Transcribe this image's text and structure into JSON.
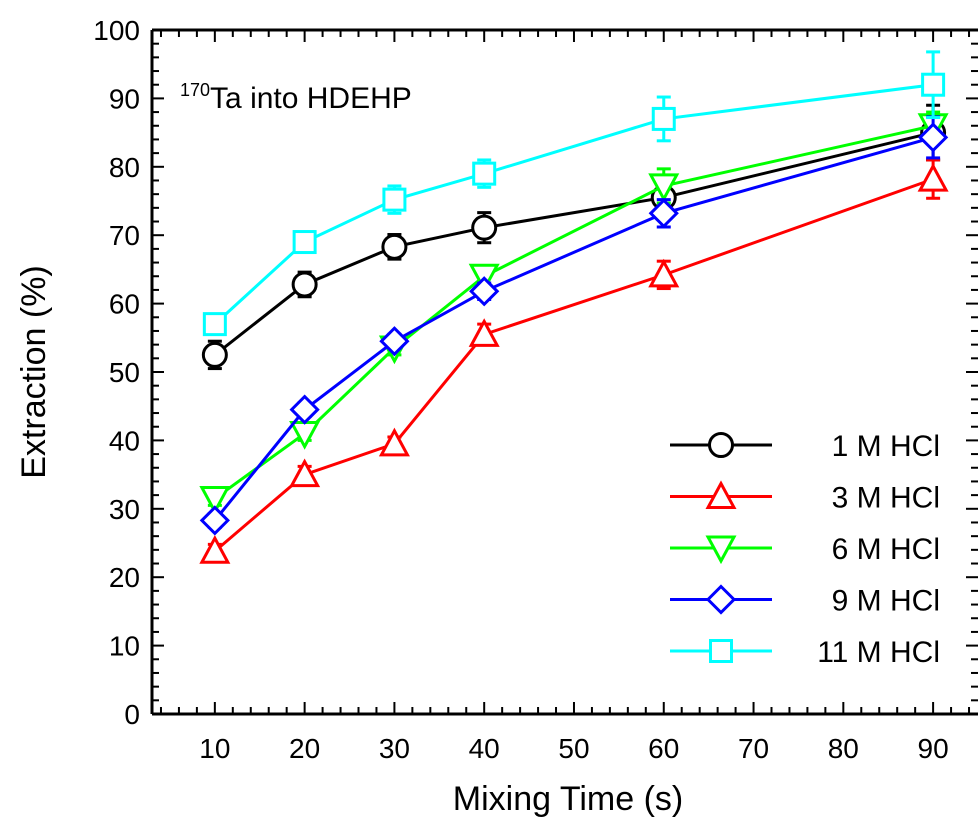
{
  "chart_data": {
    "type": "line",
    "title": "",
    "annotation": {
      "superscript": "170",
      "text": "Ta into HDEHP"
    },
    "xlabel": "Mixing Time (s)",
    "ylabel": "Extraction (%)",
    "xlim": [
      3,
      95
    ],
    "ylim": [
      0,
      100
    ],
    "xticks": [
      10,
      20,
      30,
      40,
      50,
      60,
      70,
      80,
      90
    ],
    "yticks": [
      0,
      10,
      20,
      30,
      40,
      50,
      60,
      70,
      80,
      90,
      100
    ],
    "grid": false,
    "legend_position": "bottom-right",
    "x": [
      10,
      20,
      30,
      40,
      60,
      90
    ],
    "series": [
      {
        "name": "1 M HCl",
        "color": "#000000",
        "marker": "circle",
        "values": [
          52.5,
          62.8,
          68.3,
          71.1,
          75.5,
          85.0
        ],
        "errors": [
          2.0,
          1.8,
          1.8,
          2.2,
          1.5,
          4.0
        ]
      },
      {
        "name": "3 M HCl",
        "color": "#ff0000",
        "marker": "triangle-up",
        "values": [
          23.8,
          35.0,
          39.5,
          55.5,
          64.2,
          78.2
        ],
        "errors": [
          1.0,
          1.2,
          1.0,
          1.5,
          2.0,
          2.8
        ]
      },
      {
        "name": "6 M HCl",
        "color": "#00ff00",
        "marker": "triangle-down",
        "values": [
          31.5,
          41.0,
          53.5,
          64.0,
          77.2,
          86.0
        ],
        "errors": [
          1.0,
          1.0,
          1.0,
          1.5,
          2.5,
          2.0
        ]
      },
      {
        "name": "9 M HCl",
        "color": "#0000ff",
        "marker": "diamond",
        "values": [
          28.3,
          44.5,
          54.5,
          61.8,
          73.2,
          84.3
        ],
        "errors": [
          1.0,
          1.0,
          1.0,
          1.2,
          2.0,
          3.0
        ]
      },
      {
        "name": "11 M HCl",
        "color": "#00ffff",
        "marker": "square",
        "values": [
          57.0,
          69.0,
          75.2,
          79.0,
          87.0,
          92.0
        ],
        "errors": [
          1.0,
          1.2,
          2.0,
          2.0,
          3.2,
          4.8
        ]
      }
    ]
  }
}
